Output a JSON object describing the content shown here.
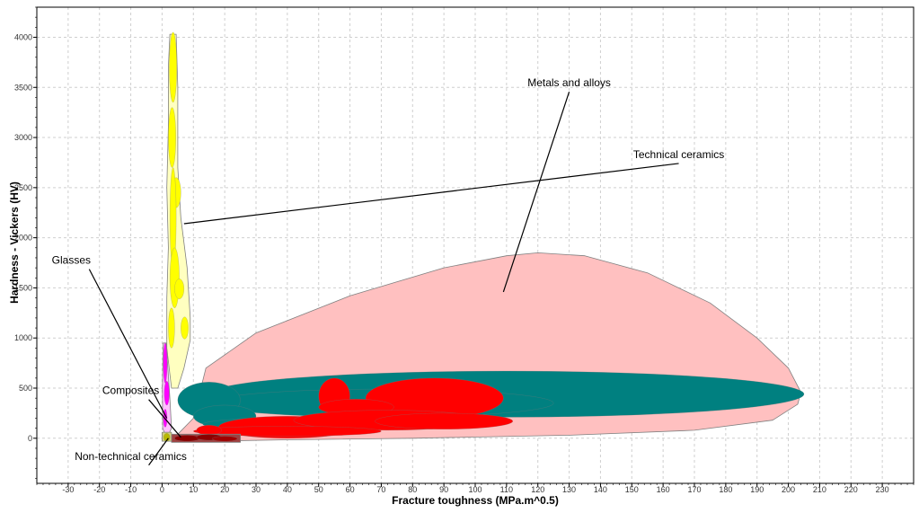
{
  "chart_data": {
    "type": "scatter",
    "subtype": "material-property-bubble-chart",
    "title": "",
    "xlabel": "Fracture toughness (MPa.m^0.5)",
    "ylabel": "Hardness - Vickers (HV)",
    "xlim": [
      -40,
      240
    ],
    "ylim": [
      -450,
      4300
    ],
    "xticks": [
      -30,
      -20,
      -10,
      0,
      10,
      20,
      30,
      40,
      50,
      60,
      70,
      80,
      90,
      100,
      110,
      120,
      130,
      140,
      150,
      160,
      170,
      180,
      190,
      200,
      210,
      220,
      230
    ],
    "yticks": [
      0,
      500,
      1000,
      1500,
      2000,
      2500,
      3000,
      3500,
      4000
    ],
    "grid": true,
    "legend": "none",
    "colors": {
      "metals_envelope": "#ffc0c0",
      "metals_teal": "#008080",
      "metals_red": "#ff0000",
      "ceramics_envelope": "#ffffc0",
      "ceramics_fill": "#ffff00",
      "glasses": "#ff00ff",
      "composites": "#8b0000"
    },
    "groups": [
      {
        "name": "Metals and alloys",
        "label": "Metals and alloys",
        "envelope_color": "#ffc0c0",
        "envelope": [
          [
            5,
            -30
          ],
          [
            5,
            40
          ],
          [
            10,
            200
          ],
          [
            14,
            700
          ],
          [
            30,
            1050
          ],
          [
            60,
            1420
          ],
          [
            90,
            1700
          ],
          [
            110,
            1820
          ],
          [
            120,
            1850
          ],
          [
            135,
            1820
          ],
          [
            155,
            1650
          ],
          [
            175,
            1350
          ],
          [
            190,
            1000
          ],
          [
            200,
            700
          ],
          [
            204,
            460
          ],
          [
            203,
            340
          ],
          [
            195,
            180
          ],
          [
            170,
            80
          ],
          [
            130,
            30
          ],
          [
            80,
            0
          ],
          [
            40,
            -15
          ],
          [
            15,
            -30
          ]
        ],
        "bubbles": [
          {
            "x": 110,
            "y": 440,
            "rx": 95,
            "ry": 230,
            "color": "#008080"
          },
          {
            "x": 70,
            "y": 350,
            "rx": 55,
            "ry": 140,
            "color": "#008080"
          },
          {
            "x": 15,
            "y": 380,
            "rx": 10,
            "ry": 180,
            "color": "#008080"
          },
          {
            "x": 20,
            "y": 220,
            "rx": 10,
            "ry": 110,
            "color": "#008080"
          },
          {
            "x": 48,
            "y": 140,
            "rx": 35,
            "ry": 70,
            "color": "#008080"
          },
          {
            "x": 55,
            "y": 420,
            "rx": 5,
            "ry": 180,
            "color": "#ff0000"
          },
          {
            "x": 87,
            "y": 400,
            "rx": 22,
            "ry": 200,
            "color": "#ff0000"
          },
          {
            "x": 62,
            "y": 310,
            "rx": 12,
            "ry": 80,
            "color": "#ff0000"
          },
          {
            "x": 40,
            "y": 110,
            "rx": 22,
            "ry": 110,
            "color": "#ff0000"
          },
          {
            "x": 72,
            "y": 180,
            "rx": 30,
            "ry": 100,
            "color": "#ff0000"
          },
          {
            "x": 90,
            "y": 170,
            "rx": 22,
            "ry": 80,
            "color": "#ff0000"
          },
          {
            "x": 40,
            "y": 70,
            "rx": 30,
            "ry": 50,
            "color": "#ff0000"
          },
          {
            "x": 15,
            "y": 80,
            "rx": 4,
            "ry": 50,
            "color": "#ff0000"
          },
          {
            "x": 20,
            "y": 0,
            "rx": 3,
            "ry": 20,
            "color": "#ff0000"
          }
        ]
      },
      {
        "name": "Technical ceramics",
        "label": "Technical ceramics",
        "envelope_color": "#ffffc0",
        "envelope": [
          [
            2.5,
            4030
          ],
          [
            4.5,
            4030
          ],
          [
            5,
            3500
          ],
          [
            5,
            2700
          ],
          [
            6,
            2200
          ],
          [
            8,
            1700
          ],
          [
            9,
            1200
          ],
          [
            9,
            980
          ],
          [
            7,
            700
          ],
          [
            5,
            500
          ],
          [
            3,
            500
          ],
          [
            1.5,
            900
          ],
          [
            1.5,
            1400
          ],
          [
            2,
            1900
          ],
          [
            1.5,
            2500
          ],
          [
            2,
            3100
          ],
          [
            2,
            3700
          ]
        ],
        "bubbles": [
          {
            "x": 3.5,
            "y": 3700,
            "rx": 1.2,
            "ry": 350,
            "color": "#ffff00"
          },
          {
            "x": 3.2,
            "y": 3000,
            "rx": 1.2,
            "ry": 300,
            "color": "#ffff00"
          },
          {
            "x": 4.5,
            "y": 2450,
            "rx": 1.5,
            "ry": 150,
            "color": "#ffff00"
          },
          {
            "x": 3.5,
            "y": 2200,
            "rx": 1.0,
            "ry": 500,
            "color": "#ffff00"
          },
          {
            "x": 4,
            "y": 1600,
            "rx": 1.5,
            "ry": 300,
            "color": "#ffff00"
          },
          {
            "x": 5.5,
            "y": 1490,
            "rx": 1.5,
            "ry": 100,
            "color": "#ffff00"
          },
          {
            "x": 7.2,
            "y": 1100,
            "rx": 1.2,
            "ry": 110,
            "color": "#ffff00"
          },
          {
            "x": 3,
            "y": 1100,
            "rx": 1.0,
            "ry": 200,
            "color": "#ffff00"
          }
        ]
      },
      {
        "name": "Glasses",
        "label": "Glasses",
        "envelope_color": "#ffc0ff",
        "envelope": [
          [
            0.3,
            950
          ],
          [
            1.3,
            950
          ],
          [
            2.5,
            400
          ],
          [
            3,
            100
          ],
          [
            1.5,
            0
          ],
          [
            0.2,
            100
          ],
          [
            0.1,
            500
          ]
        ],
        "bubbles": [
          {
            "x": 1,
            "y": 750,
            "rx": 0.6,
            "ry": 200,
            "color": "#ff00ff"
          },
          {
            "x": 1.5,
            "y": 450,
            "rx": 0.8,
            "ry": 120,
            "color": "#ff00ff"
          },
          {
            "x": 1,
            "y": 200,
            "rx": 0.6,
            "ry": 90,
            "color": "#ff00ff"
          }
        ]
      },
      {
        "name": "Composites",
        "label": "Composites",
        "envelope_color": "#a04040",
        "envelope": [
          [
            3,
            40
          ],
          [
            25,
            40
          ],
          [
            25,
            -40
          ],
          [
            3,
            -40
          ]
        ],
        "bubbles": [
          {
            "x": 8,
            "y": 0,
            "rx": 4,
            "ry": 30,
            "color": "#8b0000"
          },
          {
            "x": 15,
            "y": 10,
            "rx": 4,
            "ry": 30,
            "color": "#8b0000"
          },
          {
            "x": 20,
            "y": -5,
            "rx": 4,
            "ry": 25,
            "color": "#a00000"
          }
        ]
      },
      {
        "name": "Non-technical ceramics",
        "label": "Non-technical ceramics",
        "envelope_color": "#d4d47a",
        "envelope": [
          [
            0,
            60
          ],
          [
            3,
            60
          ],
          [
            3,
            -30
          ],
          [
            0,
            -30
          ]
        ],
        "bubbles": [
          {
            "x": 1.5,
            "y": 10,
            "rx": 1,
            "ry": 40,
            "color": "#b8b800"
          }
        ]
      }
    ],
    "annotations": [
      {
        "text": "Metals and alloys",
        "label_x": 130,
        "label_y": 3510,
        "target_x": 109,
        "target_y": 1460
      },
      {
        "text": "Technical ceramics",
        "label_x": 165,
        "label_y": 2795,
        "target_x": 7,
        "target_y": 2140
      },
      {
        "text": "Glasses",
        "label_x": -29,
        "label_y": 1740,
        "target_x": 1.5,
        "target_y": 200
      },
      {
        "text": "Composites",
        "label_x": -10,
        "label_y": 440,
        "target_x": 6,
        "target_y": 10
      },
      {
        "text": "Non-technical ceramics",
        "label_x": -10,
        "label_y": -215,
        "target_x": 2,
        "target_y": 0
      }
    ]
  }
}
